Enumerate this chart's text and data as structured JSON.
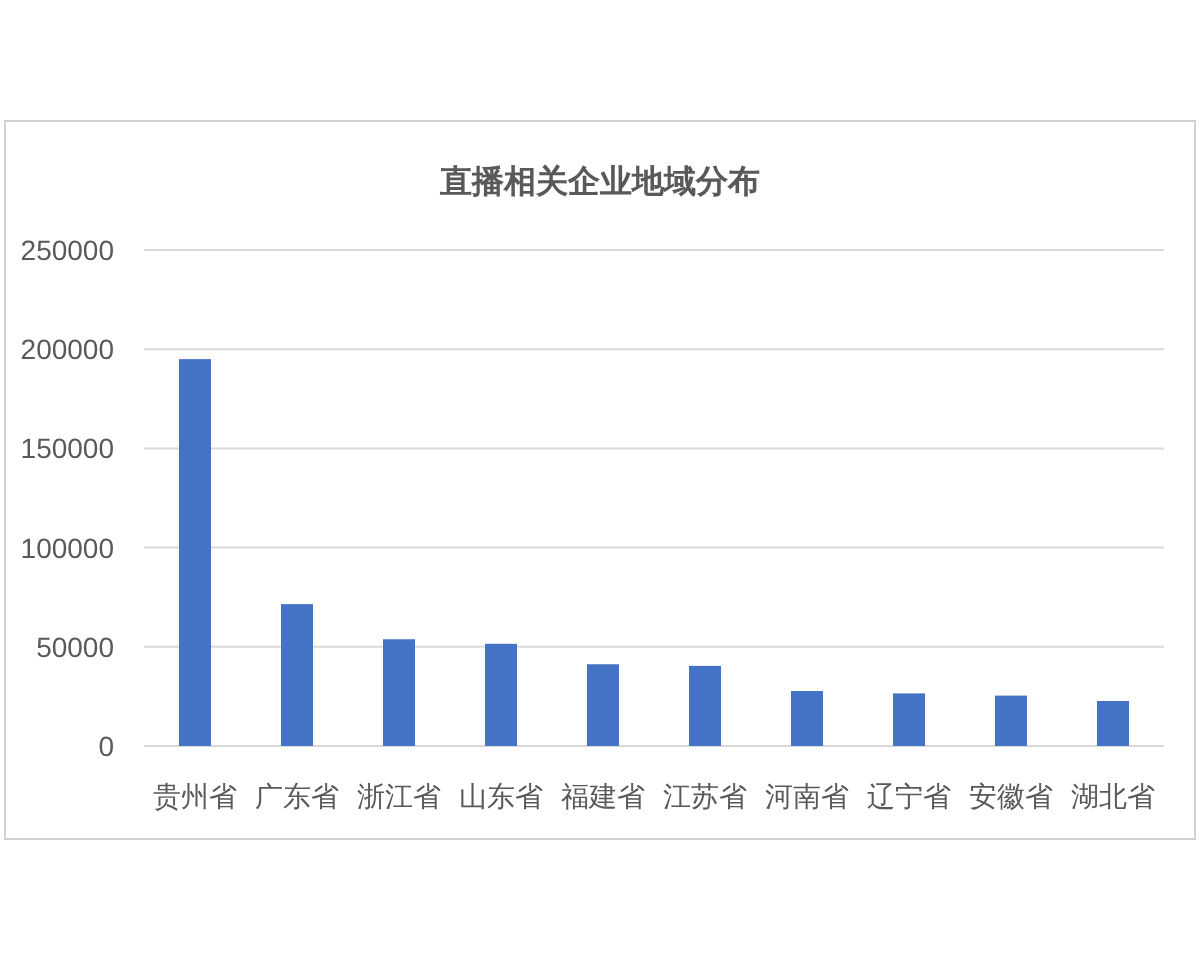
{
  "chart_data": {
    "type": "bar",
    "title": "直播相关企业地域分布",
    "categories": [
      "贵州省",
      "广东省",
      "浙江省",
      "山东省",
      "福建省",
      "江苏省",
      "河南省",
      "辽宁省",
      "安徽省",
      "湖北省"
    ],
    "values": [
      195000,
      71500,
      53800,
      51500,
      41200,
      40400,
      27700,
      26500,
      25400,
      22700
    ],
    "color": "#4472c4",
    "ylim": [
      0,
      250000
    ],
    "yticks": [
      0,
      50000,
      100000,
      150000,
      200000,
      250000
    ],
    "grid": "y"
  }
}
